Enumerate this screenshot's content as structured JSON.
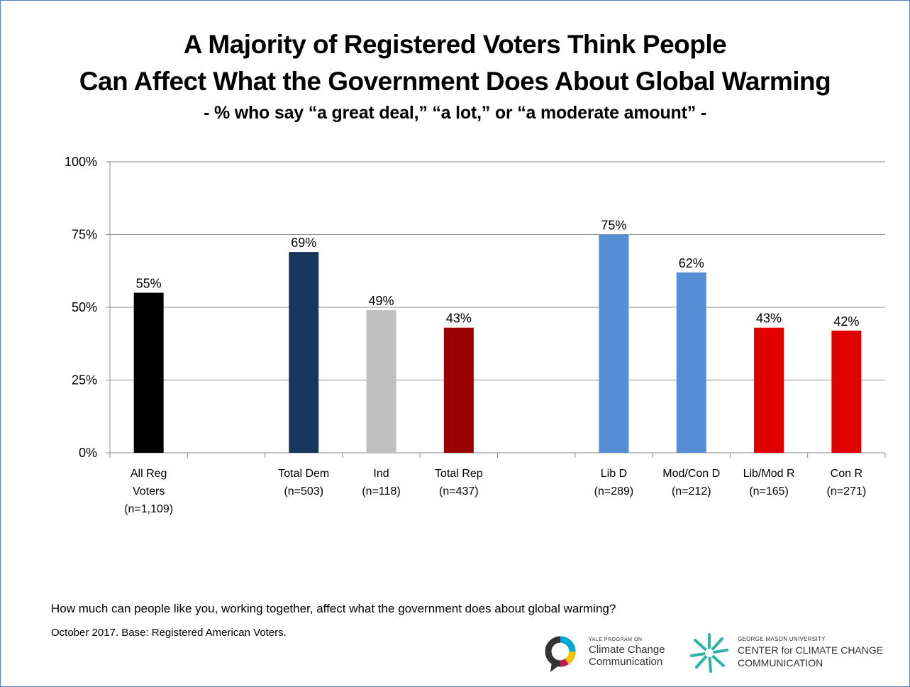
{
  "title_line1": "A Majority of Registered Voters Think People",
  "title_line2": "Can Affect What the Government Does About Global Warming",
  "subtitle": "- % who say “a great deal,” “a lot,” or “a moderate amount” -",
  "question": "How much can people like you, working together, affect what the government does about global warming?",
  "base_note": "October 2017.  Base: Registered American Voters.",
  "logos": {
    "yale": {
      "small": "YALE PROGRAM ON",
      "line1": "Climate Change",
      "line2": "Communication"
    },
    "gmu": {
      "small": "GEORGE MASON UNIVERSITY",
      "line1": "CENTER for CLIMATE CHANGE",
      "line2": "COMMUNICATION"
    }
  },
  "chart_data": {
    "type": "bar",
    "ylim": [
      0,
      100
    ],
    "yticks": [
      "0%",
      "25%",
      "50%",
      "75%",
      "100%"
    ],
    "grid": true,
    "bars": [
      {
        "label": [
          "All Reg",
          "Voters",
          "(n=1,109)"
        ],
        "value": 55,
        "text": "55%",
        "color": "#000000"
      },
      {
        "label": [],
        "value": null,
        "text": "",
        "color": ""
      },
      {
        "label": [
          "Total Dem",
          "(n=503)"
        ],
        "value": 69,
        "text": "69%",
        "color": "#17375e"
      },
      {
        "label": [
          "Ind",
          "(n=118)"
        ],
        "value": 49,
        "text": "49%",
        "color": "#bfbfbf"
      },
      {
        "label": [
          "Total Rep",
          "(n=437)"
        ],
        "value": 43,
        "text": "43%",
        "color": "#990000"
      },
      {
        "label": [],
        "value": null,
        "text": "",
        "color": ""
      },
      {
        "label": [
          "Lib D",
          "(n=289)"
        ],
        "value": 75,
        "text": "75%",
        "color": "#558ed5"
      },
      {
        "label": [
          "Mod/Con D",
          "(n=212)"
        ],
        "value": 62,
        "text": "62%",
        "color": "#558ed5"
      },
      {
        "label": [
          "Lib/Mod R",
          "(n=165)"
        ],
        "value": 43,
        "text": "43%",
        "color": "#e00000"
      },
      {
        "label": [
          "Con R",
          "(n=271)"
        ],
        "value": 42,
        "text": "42%",
        "color": "#e00000"
      }
    ]
  }
}
